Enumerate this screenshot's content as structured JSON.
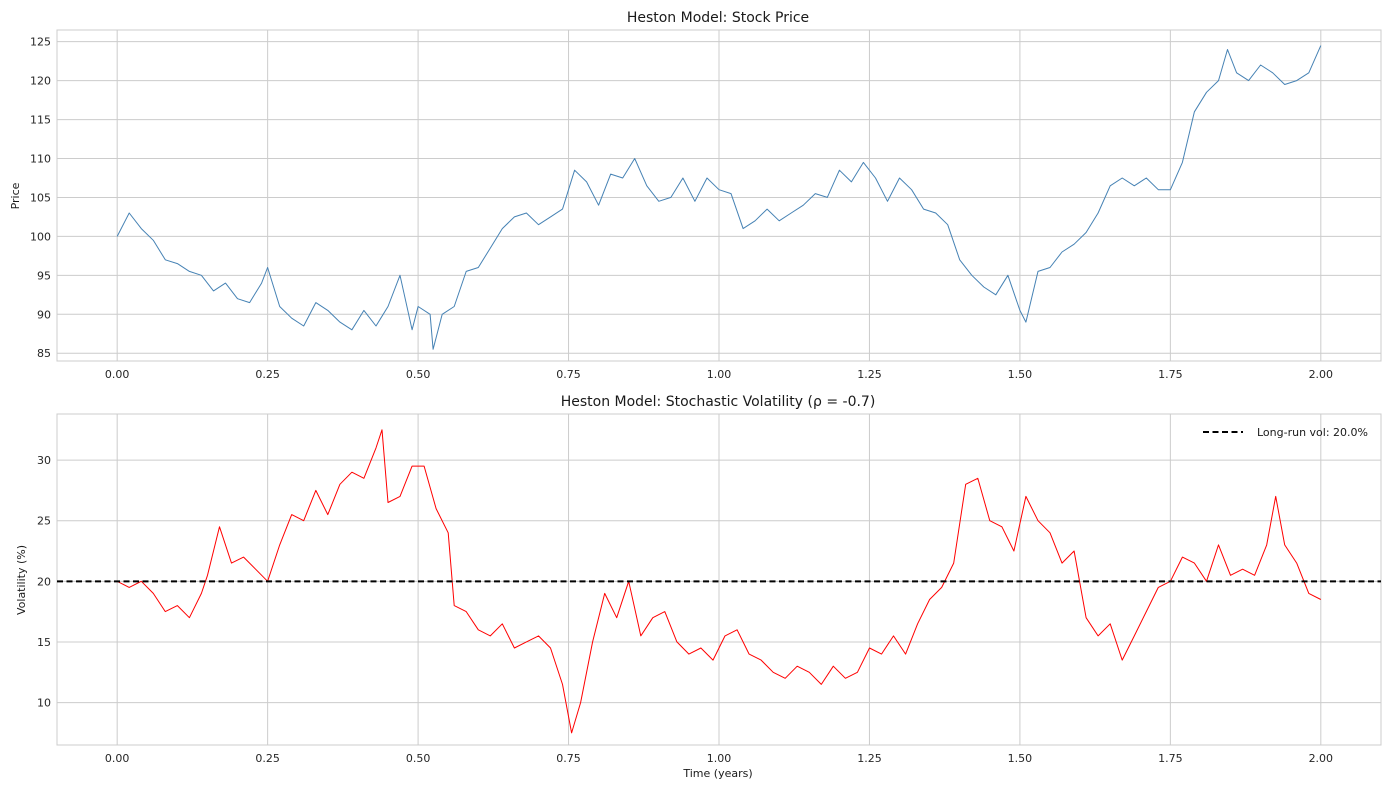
{
  "chart_data": [
    {
      "type": "line",
      "title": "Heston Model: Stock Price",
      "xlabel": "",
      "ylabel": "Price",
      "xlim": [
        -0.1,
        2.1
      ],
      "ylim": [
        84,
        126.5
      ],
      "xticks": [
        0.0,
        0.25,
        0.5,
        0.75,
        1.0,
        1.25,
        1.5,
        1.75,
        2.0
      ],
      "xtick_labels": [
        "0.00",
        "0.25",
        "0.50",
        "0.75",
        "1.00",
        "1.25",
        "1.50",
        "1.75",
        "2.00"
      ],
      "yticks": [
        85,
        90,
        95,
        100,
        105,
        110,
        115,
        120,
        125
      ],
      "ytick_labels": [
        "85",
        "90",
        "95",
        "100",
        "105",
        "110",
        "115",
        "120",
        "125"
      ],
      "grid": true,
      "series": [
        {
          "name": "Stock Price",
          "color": "#4682b4",
          "x": [
            0.0,
            0.02,
            0.04,
            0.06,
            0.08,
            0.1,
            0.12,
            0.14,
            0.16,
            0.18,
            0.2,
            0.22,
            0.24,
            0.25,
            0.27,
            0.29,
            0.31,
            0.33,
            0.35,
            0.37,
            0.39,
            0.41,
            0.43,
            0.45,
            0.47,
            0.49,
            0.5,
            0.52,
            0.525,
            0.54,
            0.56,
            0.58,
            0.6,
            0.62,
            0.64,
            0.66,
            0.68,
            0.7,
            0.72,
            0.74,
            0.76,
            0.78,
            0.8,
            0.82,
            0.84,
            0.86,
            0.88,
            0.9,
            0.92,
            0.94,
            0.96,
            0.98,
            1.0,
            1.02,
            1.04,
            1.06,
            1.08,
            1.1,
            1.12,
            1.14,
            1.16,
            1.18,
            1.2,
            1.22,
            1.24,
            1.26,
            1.28,
            1.3,
            1.32,
            1.34,
            1.36,
            1.38,
            1.4,
            1.42,
            1.44,
            1.46,
            1.48,
            1.5,
            1.51,
            1.53,
            1.55,
            1.57,
            1.59,
            1.61,
            1.63,
            1.65,
            1.67,
            1.69,
            1.71,
            1.73,
            1.75,
            1.77,
            1.79,
            1.81,
            1.83,
            1.845,
            1.86,
            1.88,
            1.9,
            1.92,
            1.94,
            1.96,
            1.98,
            2.0
          ],
          "values": [
            100.0,
            103.0,
            101.0,
            99.5,
            97.0,
            96.5,
            95.5,
            95.0,
            93.0,
            94.0,
            92.0,
            91.5,
            94.0,
            96.0,
            91.0,
            89.5,
            88.5,
            91.5,
            90.5,
            89.0,
            88.0,
            90.5,
            88.5,
            91.0,
            95.0,
            88.0,
            91.0,
            90.0,
            85.5,
            90.0,
            91.0,
            95.5,
            96.0,
            98.5,
            101.0,
            102.5,
            103.0,
            101.5,
            102.5,
            103.5,
            108.5,
            107.0,
            104.0,
            108.0,
            107.5,
            110.0,
            106.5,
            104.5,
            105.0,
            107.5,
            104.5,
            107.5,
            106.0,
            105.5,
            101.0,
            102.0,
            103.5,
            102.0,
            103.0,
            104.0,
            105.5,
            105.0,
            108.5,
            107.0,
            109.5,
            107.5,
            104.5,
            107.5,
            106.0,
            103.5,
            103.0,
            101.5,
            97.0,
            95.0,
            93.5,
            92.5,
            95.0,
            90.5,
            89.0,
            95.5,
            96.0,
            98.0,
            99.0,
            100.5,
            103.0,
            106.5,
            107.5,
            106.5,
            107.5,
            106.0,
            106.0,
            109.5,
            116.0,
            118.5,
            120.0,
            124.0,
            121.0,
            120.0,
            122.0,
            121.0,
            119.5,
            120.0,
            121.0,
            124.5
          ]
        }
      ]
    },
    {
      "type": "line",
      "title": "Heston Model: Stochastic Volatility (ρ = -0.7)",
      "xlabel": "Time (years)",
      "ylabel": "Volatility (%)",
      "xlim": [
        -0.1,
        2.1
      ],
      "ylim": [
        6.5,
        33.8
      ],
      "xticks": [
        0.0,
        0.25,
        0.5,
        0.75,
        1.0,
        1.25,
        1.5,
        1.75,
        2.0
      ],
      "xtick_labels": [
        "0.00",
        "0.25",
        "0.50",
        "0.75",
        "1.00",
        "1.25",
        "1.50",
        "1.75",
        "2.00"
      ],
      "yticks": [
        10,
        15,
        20,
        25,
        30
      ],
      "ytick_labels": [
        "10",
        "15",
        "20",
        "25",
        "30"
      ],
      "grid": true,
      "legend_position": "top-right",
      "series": [
        {
          "name": "Volatility",
          "color": "#ff0000",
          "x": [
            0.0,
            0.02,
            0.04,
            0.06,
            0.08,
            0.1,
            0.12,
            0.14,
            0.15,
            0.17,
            0.19,
            0.21,
            0.23,
            0.25,
            0.27,
            0.29,
            0.31,
            0.33,
            0.35,
            0.37,
            0.39,
            0.41,
            0.43,
            0.44,
            0.45,
            0.47,
            0.49,
            0.51,
            0.53,
            0.55,
            0.56,
            0.58,
            0.6,
            0.62,
            0.64,
            0.66,
            0.68,
            0.7,
            0.72,
            0.74,
            0.755,
            0.77,
            0.79,
            0.81,
            0.83,
            0.85,
            0.87,
            0.89,
            0.91,
            0.93,
            0.95,
            0.97,
            0.99,
            1.01,
            1.03,
            1.05,
            1.07,
            1.09,
            1.11,
            1.13,
            1.15,
            1.17,
            1.19,
            1.21,
            1.23,
            1.25,
            1.27,
            1.29,
            1.31,
            1.33,
            1.35,
            1.37,
            1.39,
            1.41,
            1.43,
            1.45,
            1.47,
            1.49,
            1.51,
            1.53,
            1.55,
            1.57,
            1.59,
            1.61,
            1.63,
            1.65,
            1.67,
            1.69,
            1.71,
            1.73,
            1.75,
            1.77,
            1.79,
            1.81,
            1.83,
            1.85,
            1.87,
            1.89,
            1.91,
            1.925,
            1.94,
            1.96,
            1.98,
            2.0
          ],
          "values": [
            20.0,
            19.5,
            20.0,
            19.0,
            17.5,
            18.0,
            17.0,
            19.0,
            20.5,
            24.5,
            21.5,
            22.0,
            21.0,
            20.0,
            23.0,
            25.5,
            25.0,
            27.5,
            25.5,
            28.0,
            29.0,
            28.5,
            31.0,
            32.5,
            26.5,
            27.0,
            29.5,
            29.5,
            26.0,
            24.0,
            18.0,
            17.5,
            16.0,
            15.5,
            16.5,
            14.5,
            15.0,
            15.5,
            14.5,
            11.5,
            7.5,
            10.0,
            15.0,
            19.0,
            17.0,
            20.0,
            15.5,
            17.0,
            17.5,
            15.0,
            14.0,
            14.5,
            13.5,
            15.5,
            16.0,
            14.0,
            13.5,
            12.5,
            12.0,
            13.0,
            12.5,
            11.5,
            13.0,
            12.0,
            12.5,
            14.5,
            14.0,
            15.5,
            14.0,
            16.5,
            18.5,
            19.5,
            21.5,
            28.0,
            28.5,
            25.0,
            24.5,
            22.5,
            27.0,
            25.0,
            24.0,
            21.5,
            22.5,
            17.0,
            15.5,
            16.5,
            13.5,
            15.5,
            17.5,
            19.5,
            20.0,
            22.0,
            21.5,
            20.0,
            23.0,
            20.5,
            21.0,
            20.5,
            23.0,
            27.0,
            23.0,
            21.5,
            19.0,
            18.5
          ]
        },
        {
          "name": "Long-run vol: 20.0%",
          "color": "#000000",
          "style": "dashed",
          "constant": 20.0
        }
      ]
    }
  ]
}
